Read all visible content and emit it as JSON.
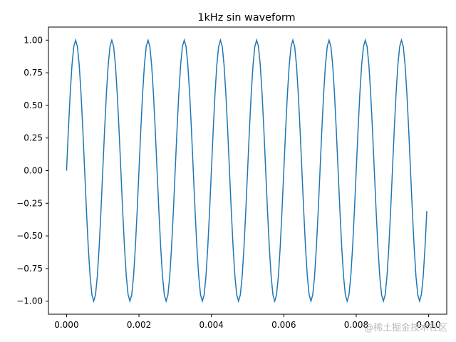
{
  "chart_data": {
    "type": "line",
    "title": "1kHz sin waveform",
    "xlabel": "",
    "ylabel": "",
    "xlim": [
      -0.0005,
      0.0105
    ],
    "ylim": [
      -1.1,
      1.1
    ],
    "x_ticks": [
      0.0,
      0.002,
      0.004,
      0.006,
      0.008,
      0.01
    ],
    "x_tick_labels": [
      "0.000",
      "0.002",
      "0.004",
      "0.006",
      "0.008",
      "0.010"
    ],
    "y_ticks": [
      1.0,
      0.75,
      0.5,
      0.25,
      0.0,
      -0.25,
      -0.5,
      -0.75,
      -1.0
    ],
    "y_tick_labels": [
      "1.00",
      "0.75",
      "0.50",
      "0.25",
      "0.00",
      "−0.25",
      "−0.50",
      "−0.75",
      "−1.00"
    ],
    "series": [
      {
        "frequency_hz": 1000,
        "amplitude": 1.0,
        "x_start": 0.0,
        "x_end": 0.00995,
        "x_step": 5e-05,
        "color": "#1f77b4"
      }
    ],
    "grid": false,
    "legend": "none"
  },
  "watermark": "@稀土掘金技术社区"
}
